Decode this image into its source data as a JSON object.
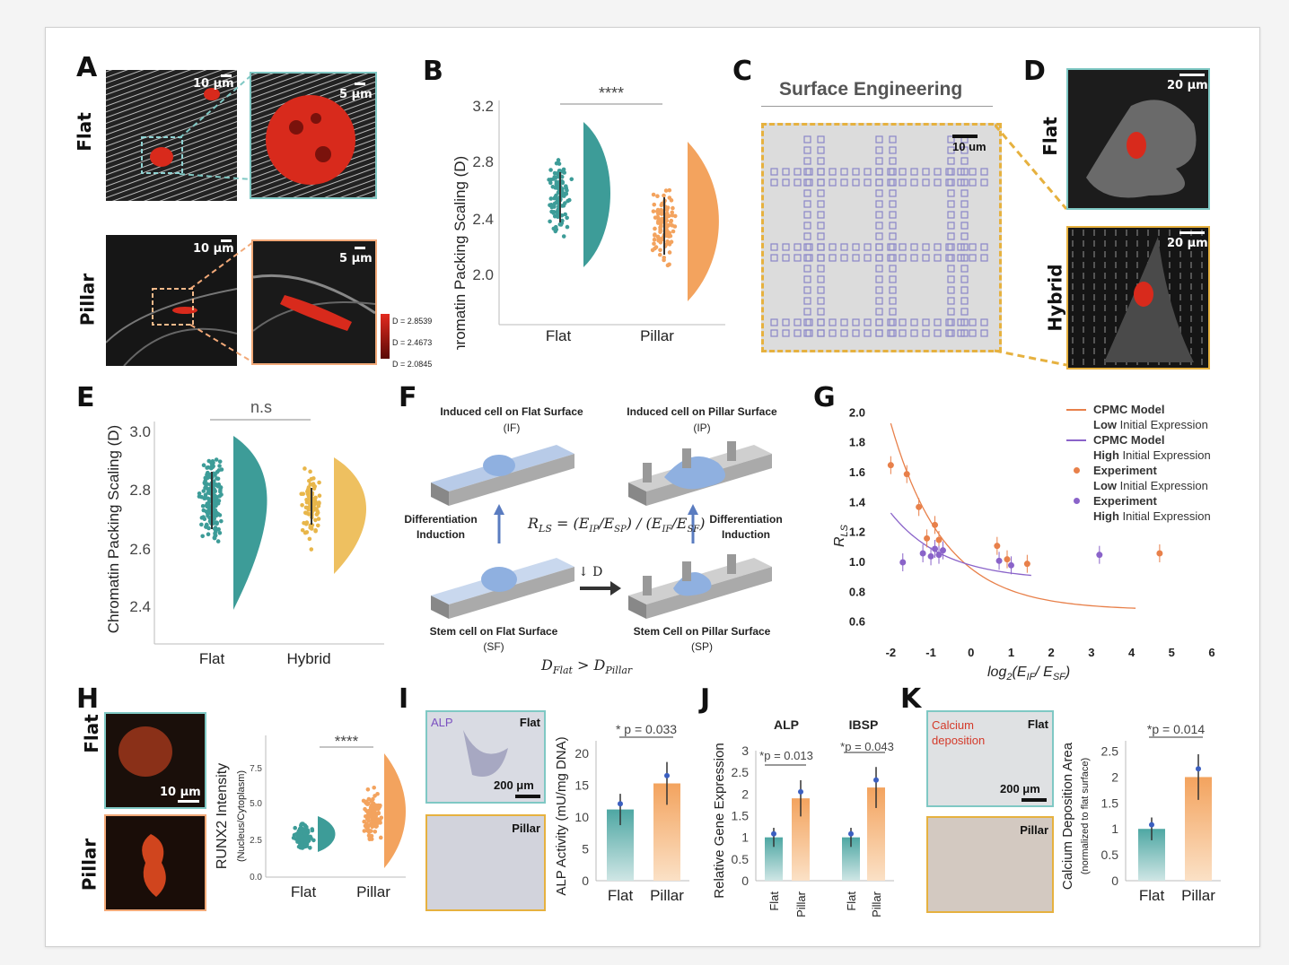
{
  "panels": {
    "A": {
      "label": "A",
      "flat": "Flat",
      "pillar": "Pillar",
      "scale_10": "10 μm",
      "scale_5": "5 μm",
      "colorbar": [
        "D = 2.8539",
        "D = 2.4673",
        "D = 2.0845"
      ]
    },
    "B": {
      "label": "B",
      "sig": "****",
      "ylabel": "Chromatin Packing Scaling (D)",
      "ticks": [
        "3.2",
        "2.8",
        "2.4",
        "2.0"
      ],
      "cats": [
        "Flat",
        "Pillar"
      ]
    },
    "C": {
      "label": "C",
      "title": "Surface Engineering",
      "scale": "10 um"
    },
    "D": {
      "label": "D",
      "flat": "Flat",
      "hybrid": "Hybrid",
      "scale": "20 μm"
    },
    "E": {
      "label": "E",
      "sig": "n.s",
      "ylabel": "Chromatin Packing Scaling (D)",
      "ticks": [
        "3.0",
        "2.8",
        "2.6",
        "2.4"
      ],
      "cats": [
        "Flat",
        "Hybrid"
      ]
    },
    "F": {
      "label": "F",
      "if_title": "Induced cell on Flat Surface",
      "if_abbr": "(IF)",
      "ip_title": "Induced cell on Pillar Surface",
      "ip_abbr": "(IP)",
      "sf_title": "Stem cell on Flat Surface",
      "sf_abbr": "(SF)",
      "sp_title": "Stem Cell on Pillar Surface",
      "sp_abbr": "(SP)",
      "diff_left": "Differentiation Induction",
      "diff_right": "Differentiation Induction",
      "down_d": "↓ D"
    },
    "G": {
      "label": "G",
      "legend": [
        {
          "bold": "CPMC Model",
          "rest": "Low Initial Expression",
          "color": "#e8804a",
          "kind": "line"
        },
        {
          "bold": "CPMC Model",
          "rest": "High Initial Expression",
          "color": "#8a63c9",
          "kind": "line"
        },
        {
          "bold": "Experiment",
          "rest": "Low Initial Expression",
          "color": "#e8804a",
          "kind": "dot"
        },
        {
          "bold": "Experiment",
          "rest": "High Initial Expression",
          "color": "#8a63c9",
          "kind": "dot"
        }
      ]
    },
    "H": {
      "label": "H",
      "flat": "Flat",
      "pillar": "Pillar",
      "scale": "10 μm",
      "sig": "****",
      "ylabel": "RUNX2 Intensity",
      "ylabel2": "(Nucleus/Cytoplasm)",
      "ticks": [
        "7.5",
        "5.0",
        "2.5",
        "0.0"
      ],
      "cats": [
        "Flat",
        "Pillar"
      ]
    },
    "I": {
      "label": "I",
      "alp": "ALP",
      "flat": "Flat",
      "pillar": "Pillar",
      "scale": "200 μm",
      "pval": "* p = 0.033",
      "ylabel": "ALP Activity (mU/mg DNA)",
      "ticks": [
        "20",
        "15",
        "10",
        "5",
        "0"
      ],
      "cats": [
        "Flat",
        "Pillar"
      ]
    },
    "J": {
      "label": "J",
      "g1": "ALP",
      "g2": "IBSP",
      "p1": "*p = 0.013",
      "p2": "*p = 0.043",
      "ylabel": "Relative Gene Expression",
      "ticks": [
        "3",
        "2.5",
        "2",
        "1.5",
        "1",
        "0.5",
        "0"
      ],
      "cats": [
        "Flat",
        "Pillar",
        "Flat",
        "Pillar"
      ]
    },
    "K": {
      "label": "K",
      "calc": "Calcium deposition",
      "flat": "Flat",
      "pillar": "Pillar",
      "scale": "200 μm",
      "pval": "*p = 0.014",
      "ylabel": "Calcium Deposition Area",
      "ylabel2": "(normalized to flat surface)",
      "ticks": [
        "2.5",
        "2",
        "1.5",
        "1",
        "0.5",
        "0"
      ],
      "cats": [
        "Flat",
        "Pillar"
      ]
    }
  },
  "chart_data": [
    {
      "type": "bar",
      "panel": "I",
      "categories": [
        "Flat",
        "Pillar"
      ],
      "values": [
        11.2,
        15.3
      ],
      "ylabel": "ALP Activity (mU/mg DNA)",
      "ylim": [
        0,
        22
      ]
    },
    {
      "type": "bar",
      "panel": "J",
      "categories": [
        "ALP Flat",
        "ALP Pillar",
        "IBSP Flat",
        "IBSP Pillar"
      ],
      "values": [
        1.0,
        1.9,
        1.0,
        2.15
      ],
      "ylabel": "Relative Gene Expression",
      "ylim": [
        0,
        3
      ]
    },
    {
      "type": "bar",
      "panel": "K",
      "categories": [
        "Flat",
        "Pillar"
      ],
      "values": [
        1.0,
        2.0
      ],
      "ylabel": "Calcium Deposition Area",
      "ylim": [
        0,
        2.7
      ]
    },
    {
      "type": "scatter",
      "panel": "G",
      "xlabel": "log2(E_IF/ E_SF)",
      "ylabel": "R_LS",
      "xlim": [
        -2.5,
        6
      ],
      "ylim": [
        0.55,
        2.05
      ],
      "x_ticks": [
        "-2",
        "-1",
        "0",
        "1",
        "2",
        "3",
        "4",
        "5",
        "6"
      ],
      "y_ticks": [
        "2.0",
        "1.8",
        "1.6",
        "1.4",
        "1.2",
        "1.0",
        "0.8",
        "0.6"
      ],
      "series": [
        {
          "name": "Experiment Low Initial Expression",
          "color": "#e8804a",
          "points": [
            [
              -2.0,
              1.65
            ],
            [
              -1.6,
              1.59
            ],
            [
              -1.3,
              1.37
            ],
            [
              -1.1,
              1.16
            ],
            [
              -0.9,
              1.25
            ],
            [
              -0.8,
              1.15
            ],
            [
              0.65,
              1.11
            ],
            [
              0.9,
              1.02
            ],
            [
              1.4,
              0.99
            ],
            [
              4.7,
              1.06
            ]
          ]
        },
        {
          "name": "Experiment High Initial Expression",
          "color": "#8a63c9",
          "points": [
            [
              -1.7,
              1.0
            ],
            [
              -1.2,
              1.06
            ],
            [
              -1.0,
              1.04
            ],
            [
              -0.9,
              1.09
            ],
            [
              -0.8,
              1.05
            ],
            [
              -0.7,
              1.08
            ],
            [
              0.7,
              1.01
            ],
            [
              1.0,
              0.98
            ],
            [
              3.2,
              1.05
            ]
          ]
        }
      ]
    }
  ]
}
